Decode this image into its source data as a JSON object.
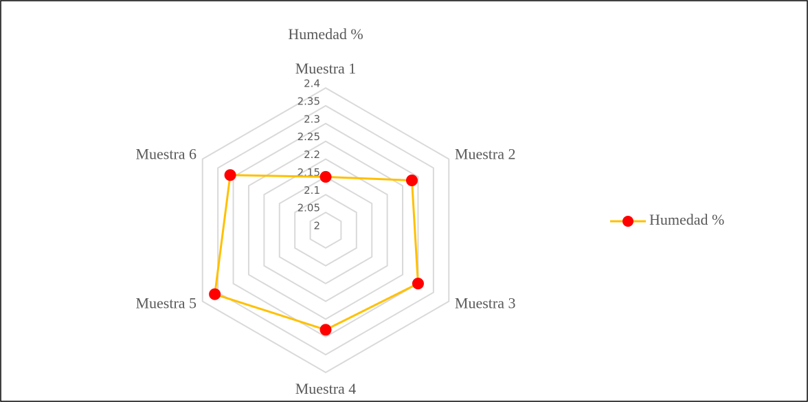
{
  "chart_data": {
    "type": "radar",
    "title": "Humedad %",
    "categories": [
      "Muestra 1",
      "Muestra 2",
      "Muestra 3",
      "Muestra 4",
      "Muestra 5",
      "Muestra 6"
    ],
    "series": [
      {
        "name": "Humedad %",
        "color": "#ffc000",
        "marker_color": "#ff0000",
        "values": [
          2.15,
          2.28,
          2.3,
          2.28,
          2.36,
          2.31
        ]
      }
    ],
    "ylim": [
      2,
      2.4
    ],
    "yticks": [
      2,
      2.05,
      2.1,
      2.15,
      2.2,
      2.25,
      2.3,
      2.35,
      2.4
    ],
    "grid": true,
    "legend": "right"
  }
}
